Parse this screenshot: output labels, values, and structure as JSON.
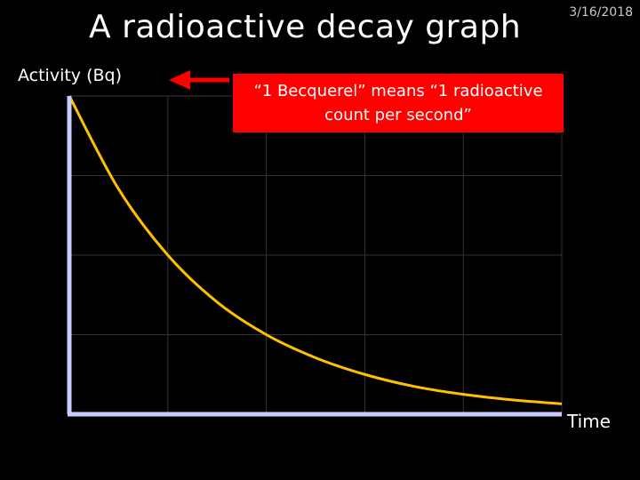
{
  "slide": {
    "title": "A radioactive decay graph",
    "date": "3/16/2018"
  },
  "callout": {
    "text": "“1 Becquerel” means “1 radioactive count per second”"
  },
  "colors": {
    "background": "#000000",
    "curve": "#ffc000",
    "axis": "#ccccff",
    "grid": "#333333",
    "callout": "#ff0000",
    "arrow": "#ff0000"
  },
  "chart_data": {
    "type": "line",
    "title": "A radioactive decay graph",
    "xlabel": "Time",
    "ylabel": "Activity (Bq)",
    "grid": true,
    "x": [
      0,
      0.5,
      1,
      1.5,
      2,
      2.5,
      3,
      3.5,
      4,
      4.5,
      5
    ],
    "series": [
      {
        "values": [
          4,
          2.83,
          2,
          1.41,
          1,
          0.71,
          0.5,
          0.35,
          0.25,
          0.18,
          0.13
        ]
      }
    ],
    "xlim": [
      0,
      5
    ],
    "ylim": [
      0,
      4
    ]
  }
}
